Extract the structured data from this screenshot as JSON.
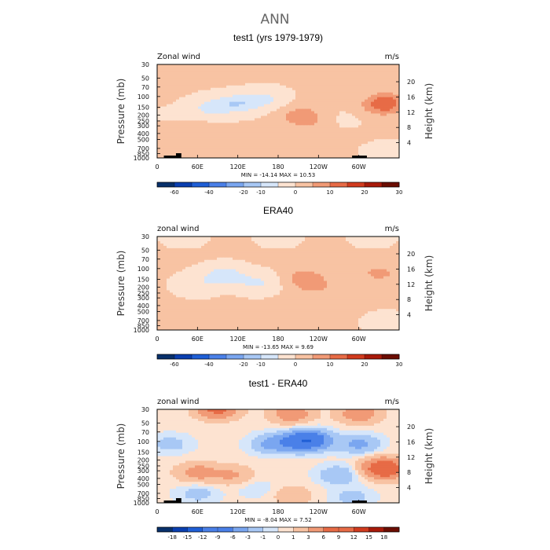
{
  "title": "ANN",
  "colors": {
    "div": [
      "#08306b",
      "#0a3fb0",
      "#1f5fd6",
      "#4a80e8",
      "#7aa6f0",
      "#a8c8f5",
      "#d6e6fa",
      "#fde3d1",
      "#f8c3a3",
      "#f19a76",
      "#e76b46",
      "#d13b1e",
      "#a81a0a",
      "#6b0d02"
    ]
  },
  "icons": {
    "topography": "land-mask-black-bars"
  },
  "chart_data": [
    {
      "type": "contour",
      "subtitle": "test1 (yrs 1979-1979)",
      "corner_left": "Zonal wind",
      "corner_right": "m/s",
      "ylabel": "Pressure (mb)",
      "ylabel_right": "Height (km)",
      "xlabel": "",
      "x_ticks": [
        "0",
        "60E",
        "120E",
        "180",
        "120W",
        "60W"
      ],
      "x_tick_values": [
        0,
        60,
        120,
        180,
        240,
        300
      ],
      "xlim": [
        0,
        360
      ],
      "y_ticks": [
        "30",
        "50",
        "70",
        "100",
        "150",
        "200",
        "250",
        "300",
        "400",
        "500",
        "700",
        "850",
        "1000"
      ],
      "y_tick_values": [
        30,
        50,
        70,
        100,
        150,
        200,
        250,
        300,
        400,
        500,
        700,
        850,
        1000
      ],
      "ylim": [
        30,
        1000
      ],
      "height_ticks": [
        "4",
        "8",
        "12",
        "16",
        "20"
      ],
      "height_tick_values": [
        4,
        8,
        12,
        16,
        20
      ],
      "min_max_text": "MIN = -14.14  MAX =  10.53",
      "colorbar": {
        "labels": [
          "-60",
          "-40",
          "-20",
          "-10",
          "0",
          "10",
          "20",
          "30"
        ],
        "levels": [
          -70,
          -60,
          -50,
          -40,
          -30,
          -20,
          -10,
          -5,
          0,
          5,
          10,
          15,
          20,
          25,
          30
        ]
      },
      "has_topography": true,
      "features": [
        {
          "lon": 120,
          "p": 130,
          "v": -9
        },
        {
          "lon": 80,
          "p": 150,
          "v": -7
        },
        {
          "lon": 160,
          "p": 110,
          "v": -6
        },
        {
          "lon": 215,
          "p": 200,
          "v": 6
        },
        {
          "lon": 220,
          "p": 250,
          "v": 4
        },
        {
          "lon": 335,
          "p": 150,
          "v": 7
        },
        {
          "lon": 340,
          "p": 120,
          "v": 9
        },
        {
          "lon": 50,
          "p": 350,
          "v": 2
        },
        {
          "lon": 70,
          "p": 800,
          "v": 2
        },
        {
          "lon": 150,
          "p": 900,
          "v": 1
        },
        {
          "lon": 340,
          "p": 800,
          "v": -2
        },
        {
          "lon": 260,
          "p": 80,
          "v": 2
        },
        {
          "lon": 30,
          "p": 200,
          "v": -1
        },
        {
          "lon": 230,
          "p": 800,
          "v": 1
        },
        {
          "lon": 280,
          "p": 230,
          "v": -1
        }
      ]
    },
    {
      "type": "contour",
      "subtitle": "ERA40",
      "corner_left": "zonal wind",
      "corner_right": "m/s",
      "ylabel": "Pressure (mb)",
      "ylabel_right": "Height (km)",
      "xlabel": "",
      "x_ticks": [
        "0",
        "60E",
        "120E",
        "180",
        "120W",
        "60W"
      ],
      "x_tick_values": [
        0,
        60,
        120,
        180,
        240,
        300
      ],
      "xlim": [
        0,
        360
      ],
      "y_ticks": [
        "30",
        "50",
        "70",
        "100",
        "150",
        "200",
        "250",
        "300",
        "400",
        "500",
        "700",
        "850",
        "1000"
      ],
      "y_tick_values": [
        30,
        50,
        70,
        100,
        150,
        200,
        250,
        300,
        400,
        500,
        700,
        850,
        1000
      ],
      "ylim": [
        30,
        1000
      ],
      "height_ticks": [
        "4",
        "8",
        "12",
        "16",
        "20"
      ],
      "height_tick_values": [
        4,
        8,
        12,
        16,
        20
      ],
      "min_max_text": "MIN = -13.65  MAX =   9.69",
      "colorbar": {
        "labels": [
          "-60",
          "-40",
          "-20",
          "-10",
          "0",
          "10",
          "20",
          "30"
        ],
        "levels": [
          -70,
          -60,
          -50,
          -40,
          -30,
          -20,
          -10,
          -5,
          0,
          5,
          10,
          15,
          20,
          25,
          30
        ]
      },
      "has_topography": false,
      "features": [
        {
          "lon": 100,
          "p": 130,
          "v": -9
        },
        {
          "lon": 150,
          "p": 170,
          "v": -6
        },
        {
          "lon": 60,
          "p": 180,
          "v": -4
        },
        {
          "lon": 220,
          "p": 140,
          "v": 7
        },
        {
          "lon": 235,
          "p": 200,
          "v": 5
        },
        {
          "lon": 330,
          "p": 120,
          "v": 6
        },
        {
          "lon": 40,
          "p": 30,
          "v": -2
        },
        {
          "lon": 180,
          "p": 30,
          "v": -2
        },
        {
          "lon": 320,
          "p": 30,
          "v": -2
        },
        {
          "lon": 60,
          "p": 800,
          "v": 2
        },
        {
          "lon": 340,
          "p": 750,
          "v": -2
        },
        {
          "lon": 200,
          "p": 450,
          "v": 1
        }
      ]
    },
    {
      "type": "contour",
      "subtitle": "test1 - ERA40",
      "corner_left": "zonal wind",
      "corner_right": "m/s",
      "ylabel": "Pressure (mb)",
      "ylabel_right": "Height (km)",
      "xlabel": "",
      "x_ticks": [
        "0",
        "60E",
        "120E",
        "180",
        "120W",
        "60W"
      ],
      "x_tick_values": [
        0,
        60,
        120,
        180,
        240,
        300
      ],
      "xlim": [
        0,
        360
      ],
      "y_ticks": [
        "30",
        "50",
        "70",
        "100",
        "150",
        "200",
        "250",
        "300",
        "400",
        "500",
        "700",
        "850",
        "1000"
      ],
      "y_tick_values": [
        30,
        50,
        70,
        100,
        150,
        200,
        250,
        300,
        400,
        500,
        700,
        850,
        1000
      ],
      "ylim": [
        30,
        1000
      ],
      "height_ticks": [
        "4",
        "8",
        "12",
        "16",
        "20"
      ],
      "height_tick_values": [
        4,
        8,
        12,
        16,
        20
      ],
      "min_max_text": "MIN =  -8.04  MAX =   7.52",
      "colorbar": {
        "labels": [
          "-18",
          "-15",
          "-12",
          "-9",
          "-6",
          "-3",
          "-1",
          "0",
          "1",
          "3",
          "6",
          "9",
          "12",
          "15",
          "18"
        ],
        "levels": [
          -21,
          -18,
          -15,
          -12,
          -9,
          -6,
          -3,
          -1,
          0,
          1,
          3,
          6,
          9,
          12,
          15,
          18,
          21
        ]
      },
      "has_topography": true,
      "features": [
        {
          "lon": 90,
          "p": 30,
          "v": 7
        },
        {
          "lon": 200,
          "p": 35,
          "v": 5
        },
        {
          "lon": 300,
          "p": 35,
          "v": 5
        },
        {
          "lon": 210,
          "p": 100,
          "v": -6
        },
        {
          "lon": 230,
          "p": 95,
          "v": -8
        },
        {
          "lon": 170,
          "p": 110,
          "v": -4
        },
        {
          "lon": 300,
          "p": 110,
          "v": -4
        },
        {
          "lon": 60,
          "p": 320,
          "v": 4
        },
        {
          "lon": 110,
          "p": 350,
          "v": 3
        },
        {
          "lon": 335,
          "p": 250,
          "v": 5
        },
        {
          "lon": 340,
          "p": 300,
          "v": 6
        },
        {
          "lon": 270,
          "p": 350,
          "v": -3
        },
        {
          "lon": 20,
          "p": 110,
          "v": -2
        },
        {
          "lon": 60,
          "p": 700,
          "v": -2
        },
        {
          "lon": 150,
          "p": 600,
          "v": -1
        },
        {
          "lon": 200,
          "p": 750,
          "v": 2
        },
        {
          "lon": 290,
          "p": 800,
          "v": -2
        }
      ]
    }
  ]
}
